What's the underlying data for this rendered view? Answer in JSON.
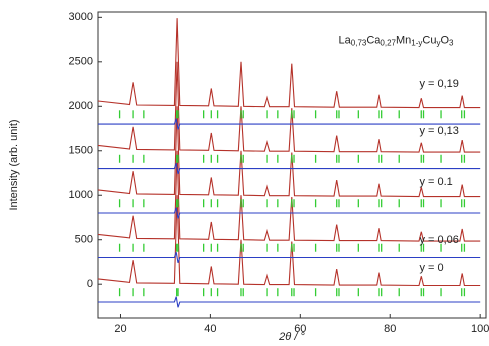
{
  "chart_data": {
    "type": "line",
    "title": [
      "La",
      "0,73",
      "Ca",
      "0,27",
      "Mn",
      "1-y",
      "Cu",
      "y",
      "O",
      "3"
    ],
    "title_position": [
      68.5,
      2740
    ],
    "x_label": "2θ / °",
    "y_label": "Intensity (arb. unit)",
    "xlim": [
      15,
      101.3
    ],
    "xticks": [
      20,
      40,
      60,
      80,
      100
    ],
    "ylim": [
      -380,
      3060
    ],
    "yticks": [
      0,
      500,
      1000,
      1500,
      2000,
      2500,
      3000
    ],
    "reflections": [
      19.8,
      22.8,
      25.2,
      32.5,
      32.8,
      38.5,
      40.2,
      41.6,
      46.8,
      47.3,
      52.6,
      55.0,
      58.1,
      58.6,
      63.4,
      68.1,
      68.6,
      72.9,
      77.5,
      78.1,
      82.0,
      86.9,
      87.4,
      91.3,
      95.9,
      96.5
    ],
    "series": [
      {
        "style": "line",
        "color": "#b5322a",
        "x": [
          15,
          22,
          22.8,
          23.6,
          32,
          32.6,
          33.2,
          39.6,
          40.2,
          40.8,
          46.2,
          46.8,
          47.4,
          52,
          52.6,
          53.2,
          57.5,
          58.1,
          58.7,
          67.5,
          68.1,
          68.7,
          77,
          77.5,
          78,
          86.4,
          86.9,
          87.4,
          95.5,
          96,
          96.5,
          100
        ],
        "values": [
          60,
          20,
          270,
          15,
          10,
          1000,
          10,
          5,
          200,
          5,
          0,
          500,
          0,
          -5,
          100,
          -5,
          -5,
          480,
          -5,
          -10,
          170,
          -10,
          -10,
          130,
          -10,
          -15,
          90,
          -15,
          -15,
          120,
          -15,
          -15
        ]
      },
      {
        "style": "line",
        "color": "#b5322a",
        "x": [
          15,
          22,
          22.8,
          23.6,
          32,
          32.6,
          33.2,
          39.6,
          40.2,
          40.8,
          46.2,
          46.8,
          47.4,
          52,
          52.6,
          53.2,
          57.5,
          58.1,
          58.7,
          67.5,
          68.1,
          68.7,
          77,
          77.5,
          78,
          86.4,
          86.9,
          87.4,
          95.5,
          96,
          96.5,
          100
        ],
        "values": [
          560,
          520,
          770,
          515,
          510,
          1500,
          510,
          505,
          700,
          505,
          500,
          1000,
          500,
          495,
          600,
          495,
          495,
          980,
          495,
          490,
          670,
          490,
          490,
          630,
          490,
          485,
          590,
          485,
          485,
          620,
          485,
          485
        ]
      },
      {
        "style": "line",
        "color": "#b5322a",
        "x": [
          15,
          22,
          22.8,
          23.6,
          32,
          32.6,
          33.2,
          39.6,
          40.2,
          40.8,
          46.2,
          46.8,
          47.4,
          52,
          52.6,
          53.2,
          57.5,
          58.1,
          58.7,
          67.5,
          68.1,
          68.7,
          77,
          77.5,
          78,
          86.4,
          86.9,
          87.4,
          95.5,
          96,
          96.5,
          100
        ],
        "values": [
          1060,
          1020,
          1270,
          1015,
          1010,
          2000,
          1010,
          1005,
          1200,
          1005,
          1000,
          1500,
          1000,
          995,
          1100,
          995,
          995,
          1480,
          995,
          990,
          1170,
          990,
          990,
          1130,
          990,
          985,
          1090,
          985,
          985,
          1120,
          985,
          985
        ]
      },
      {
        "style": "line",
        "color": "#b5322a",
        "x": [
          15,
          22,
          22.8,
          23.6,
          32,
          32.6,
          33.2,
          39.6,
          40.2,
          40.8,
          46.2,
          46.8,
          47.4,
          52,
          52.6,
          53.2,
          57.5,
          58.1,
          58.7,
          67.5,
          68.1,
          68.7,
          77,
          77.5,
          78,
          86.4,
          86.9,
          87.4,
          95.5,
          96,
          96.5,
          100
        ],
        "values": [
          1560,
          1520,
          1770,
          1515,
          1510,
          2500,
          1510,
          1505,
          1700,
          1505,
          1500,
          2000,
          1500,
          1495,
          1600,
          1495,
          1495,
          1980,
          1495,
          1490,
          1670,
          1490,
          1490,
          1630,
          1490,
          1485,
          1590,
          1485,
          1485,
          1620,
          1485,
          1485
        ]
      },
      {
        "style": "line",
        "color": "#b5322a",
        "x": [
          15,
          22,
          22.8,
          23.6,
          32,
          32.6,
          33.2,
          39.6,
          40.2,
          40.8,
          46.2,
          46.8,
          47.4,
          52,
          52.6,
          53.2,
          57.5,
          58.1,
          58.7,
          67.5,
          68.1,
          68.7,
          77,
          77.5,
          78,
          86.4,
          86.9,
          87.4,
          95.5,
          96,
          96.5,
          100
        ],
        "values": [
          2060,
          2020,
          2270,
          2015,
          2010,
          2990,
          2010,
          2005,
          2200,
          2005,
          2000,
          2500,
          2000,
          1995,
          2100,
          1995,
          1995,
          2480,
          1995,
          1990,
          2170,
          1990,
          1990,
          2130,
          1990,
          1985,
          2090,
          1985,
          1985,
          2120,
          1985,
          1985
        ]
      },
      {
        "style": "line",
        "color": "#2b3fc4",
        "x": [
          15,
          32,
          32.4,
          32.8,
          33.2,
          100
        ],
        "values": [
          -200,
          -200,
          -140,
          -260,
          -200,
          -200
        ]
      },
      {
        "style": "line",
        "color": "#2b3fc4",
        "x": [
          15,
          32,
          32.4,
          32.8,
          33.2,
          100
        ],
        "values": [
          300,
          300,
          360,
          240,
          300,
          300
        ]
      },
      {
        "style": "line",
        "color": "#2b3fc4",
        "x": [
          15,
          32,
          32.4,
          32.8,
          33.2,
          100
        ],
        "values": [
          800,
          800,
          860,
          740,
          800,
          800
        ]
      },
      {
        "style": "line",
        "color": "#2b3fc4",
        "x": [
          15,
          32,
          32.4,
          32.8,
          33.2,
          100
        ],
        "values": [
          1300,
          1300,
          1360,
          1240,
          1300,
          1300
        ]
      },
      {
        "style": "line",
        "color": "#2b3fc4",
        "x": [
          15,
          32,
          32.4,
          32.8,
          33.2,
          100
        ],
        "values": [
          1800,
          1800,
          1860,
          1740,
          1800,
          1800
        ]
      },
      {
        "style": "ticks",
        "color": "#33cc33",
        "level": -90
      },
      {
        "style": "ticks",
        "color": "#33cc33",
        "level": 410
      },
      {
        "style": "ticks",
        "color": "#33cc33",
        "level": 910
      },
      {
        "style": "ticks",
        "color": "#33cc33",
        "level": 1410
      },
      {
        "style": "ticks",
        "color": "#33cc33",
        "level": 1910
      }
    ],
    "annotations": [
      {
        "text": "y = 0",
        "x": 86.5,
        "y": 180
      },
      {
        "text": "y = 0,06",
        "x": 86.5,
        "y": 494
      },
      {
        "text": "y = 0.1",
        "x": 86.5,
        "y": 1146
      },
      {
        "text": "y = 0,13",
        "x": 86.5,
        "y": 1719
      },
      {
        "text": "y = 0,19",
        "x": 86.5,
        "y": 2250
      }
    ]
  }
}
